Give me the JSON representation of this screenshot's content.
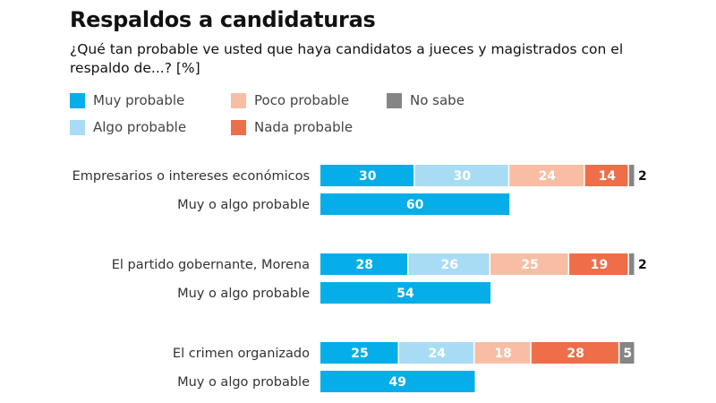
{
  "chart_data": {
    "type": "bar",
    "orientation": "horizontal-stacked",
    "title": "Respaldos a candidaturas",
    "subtitle": "¿Qué tan probable ve usted que haya candidatos a jueces y magistrados con el respaldo de...? [%]",
    "legend": [
      {
        "name": "Muy probable",
        "color": "#05aee8"
      },
      {
        "name": "Algo probable",
        "color": "#a8dcf5"
      },
      {
        "name": "Poco probable",
        "color": "#f7bea4"
      },
      {
        "name": "Nada probable",
        "color": "#ee6e4a"
      },
      {
        "name": "No sabe",
        "color": "#858585"
      }
    ],
    "legend_placement": "top-left",
    "groups": [
      {
        "category": "Empresarios o intereses económicos",
        "values": [
          30,
          30,
          24,
          14,
          2
        ],
        "combined_label": "Muy o algo probable",
        "combined_value": 60
      },
      {
        "category": "El partido gobernante, Morena",
        "values": [
          28,
          26,
          25,
          19,
          2
        ],
        "combined_label": "Muy o algo probable",
        "combined_value": 54
      },
      {
        "category": "El crimen organizado",
        "values": [
          25,
          24,
          18,
          28,
          5
        ],
        "combined_label": "Muy o algo probable",
        "combined_value": 49
      }
    ],
    "xlim": [
      0,
      100
    ],
    "grid": false
  }
}
